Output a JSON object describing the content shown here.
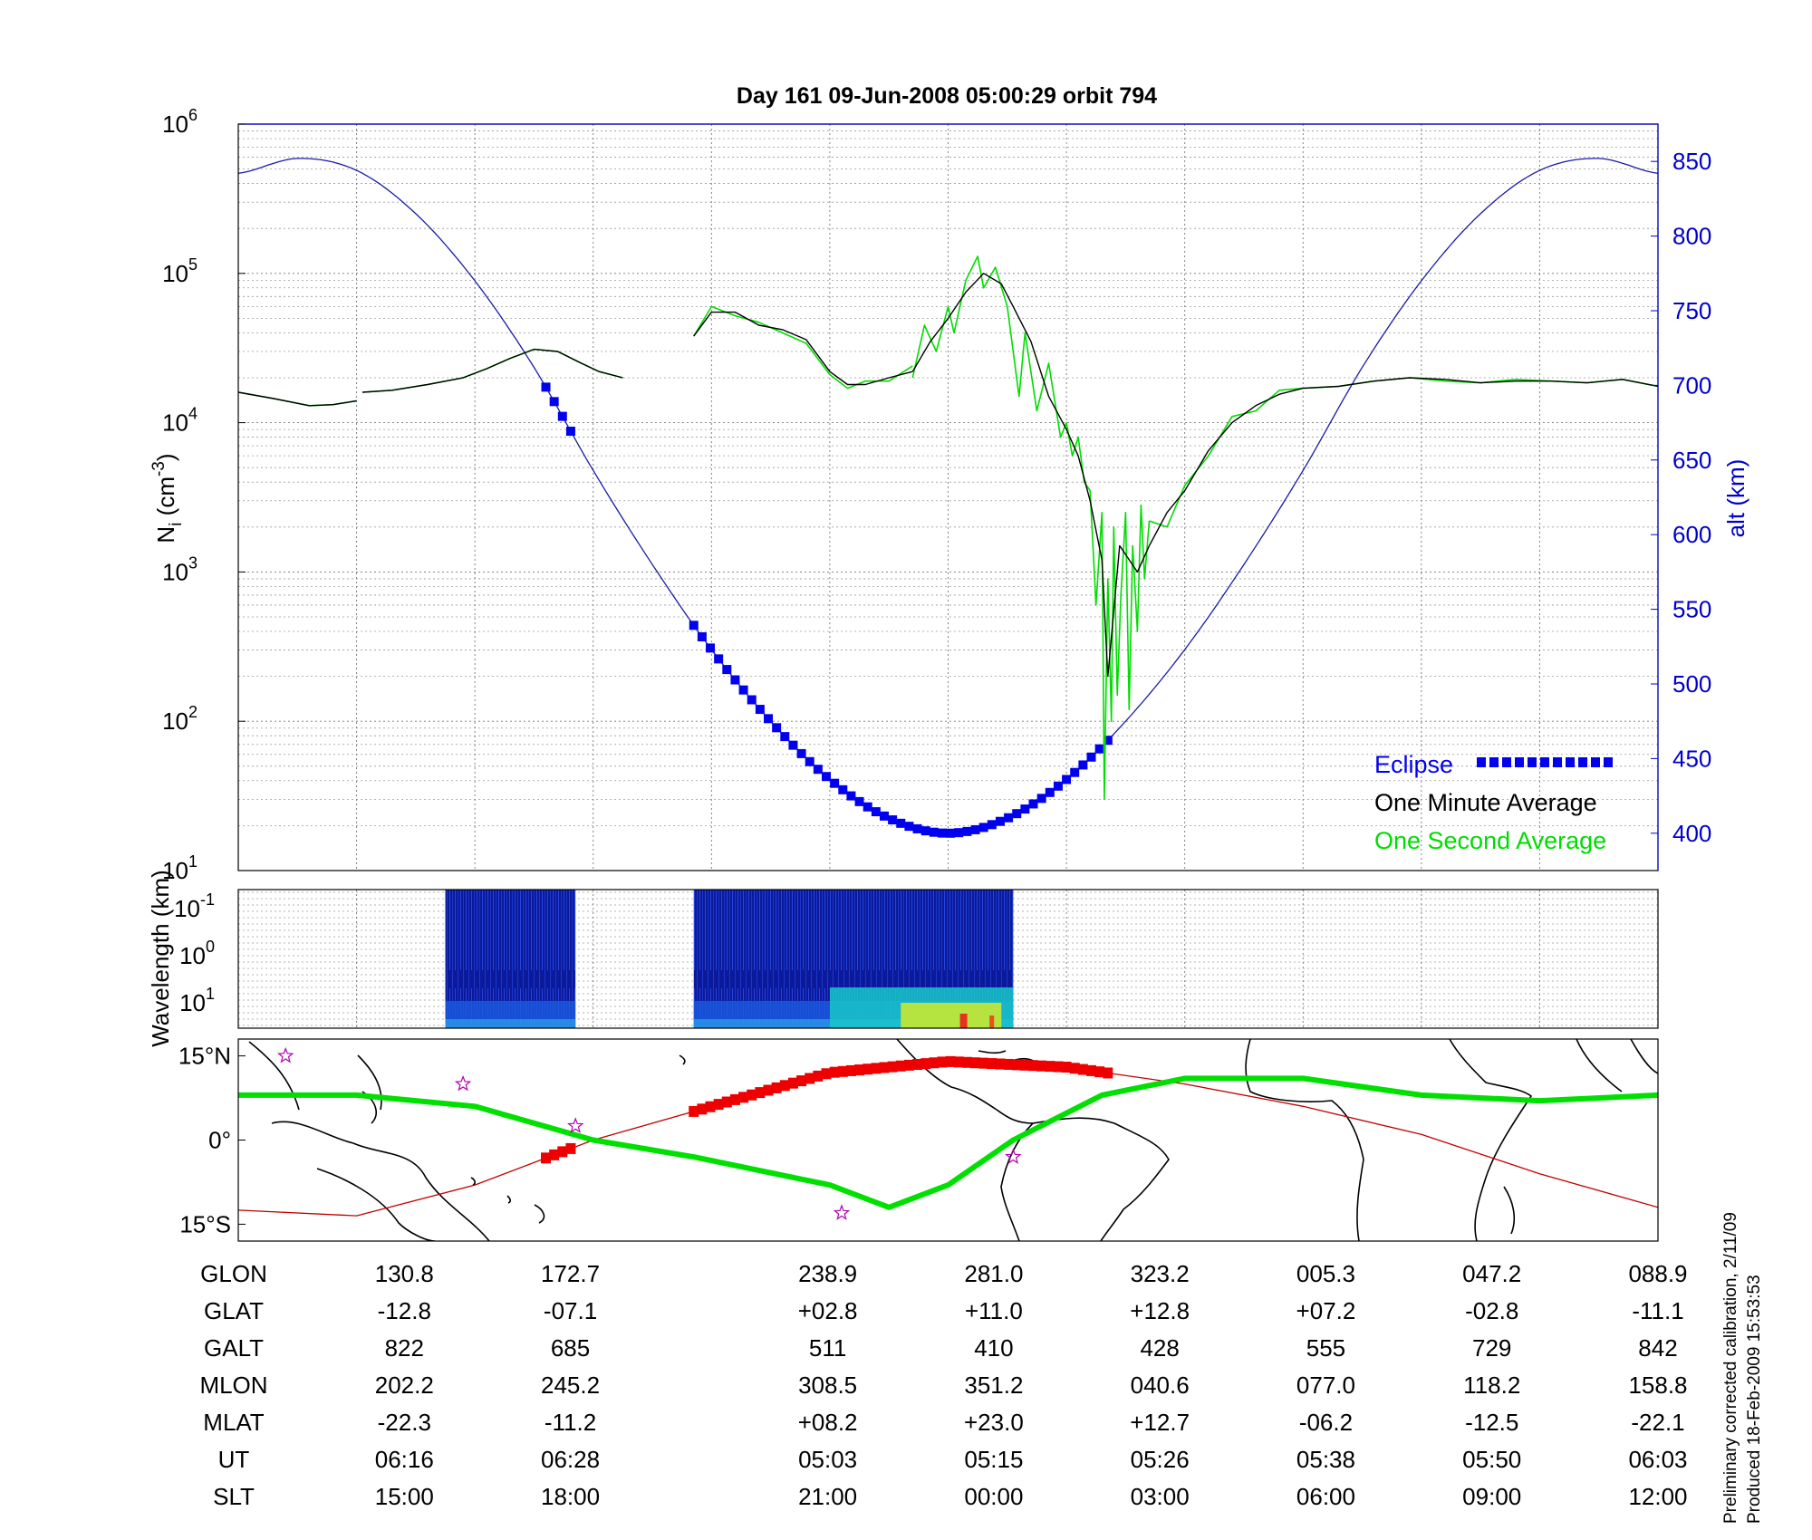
{
  "title": "Day 161  09-Jun-2008 05:00:29   orbit 794",
  "colors": {
    "eclipse": "#0000ee",
    "altitude": "#1a1aa8",
    "one_minute": "#000000",
    "one_second": "#00dd00",
    "track_eclipse": "#ee0000",
    "ground_track": "#00e000",
    "magnetic_equator": "#c00000",
    "star": "#b000b0",
    "right_axis": "#0000cc"
  },
  "chart_data": [
    {
      "type": "line",
      "panel": "ion-density",
      "ylabel": "N_i (cm^-3)",
      "ylabel_main": "N",
      "ylabel_sub": "i",
      "ylabel_unit": " (cm",
      "ylabel_unit_sup": "-3",
      "ylabel_close": ")",
      "yscale": "log",
      "ylim": [
        10,
        1000000
      ],
      "yticks": [
        {
          "base": "10",
          "exp": "1",
          "value": 10
        },
        {
          "base": "10",
          "exp": "2",
          "value": 100
        },
        {
          "base": "10",
          "exp": "3",
          "value": 1000
        },
        {
          "base": "10",
          "exp": "4",
          "value": 10000
        },
        {
          "base": "10",
          "exp": "5",
          "value": 100000
        },
        {
          "base": "10",
          "exp": "6",
          "value": 1000000
        }
      ],
      "y2label": "alt (km)",
      "y2lim": [
        375,
        875
      ],
      "y2ticks": [
        "400",
        "450",
        "500",
        "550",
        "600",
        "650",
        "700",
        "750",
        "800",
        "850"
      ],
      "grid": true,
      "legend_position": "bottom-right",
      "legend": [
        {
          "label": "Eclipse",
          "key": "eclipse"
        },
        {
          "label": "One Minute Average",
          "key": "one_minute"
        },
        {
          "label": "One Second Average",
          "key": "one_second"
        }
      ],
      "series": [
        {
          "name": "One Minute Average",
          "key": "one_minute",
          "segments": [
            {
              "x": [
                0,
                0.3,
                0.6,
                0.8,
                1.0
              ],
              "y": [
                16000,
                14500,
                13000,
                13200,
                14000
              ]
            },
            {
              "x": [
                1.05,
                1.3,
                1.6,
                1.9,
                2.1,
                2.3,
                2.5,
                2.7
              ],
              "y": [
                16000,
                16500,
                18000,
                20000,
                23000,
                27000,
                31000,
                30000
              ]
            },
            {
              "x": [
                2.7,
                2.9,
                3.05,
                3.25
              ],
              "y": [
                30000,
                25000,
                22000,
                20000
              ]
            },
            {
              "x": [
                3.85,
                4.0,
                4.2,
                4.4,
                4.6,
                4.8,
                5.0,
                5.15,
                5.3,
                5.5,
                5.7
              ],
              "y": [
                38000,
                55000,
                55000,
                45000,
                42000,
                36000,
                22000,
                18000,
                18000,
                20000,
                22000
              ]
            },
            {
              "x": [
                5.7,
                5.85,
                6.0,
                6.15,
                6.3,
                6.45,
                6.55,
                6.7,
                6.85,
                7.0,
                7.1,
                7.2,
                7.3,
                7.35,
                7.45,
                7.6,
                7.7
              ],
              "y": [
                22000,
                35000,
                50000,
                75000,
                100000,
                85000,
                60000,
                35000,
                15000,
                9000,
                6000,
                3000,
                1200,
                200,
                1500,
                1000,
                1500
              ]
            },
            {
              "x": [
                7.7,
                7.85,
                8.0,
                8.2,
                8.4,
                8.6,
                8.8,
                9.0
              ],
              "y": [
                1500,
                2500,
                3500,
                6500,
                10000,
                13000,
                15500,
                17000
              ]
            },
            {
              "x": [
                9.0,
                9.3,
                9.6,
                9.9,
                10.2,
                10.5,
                10.8,
                11.1,
                11.4,
                11.7,
                12.0
              ],
              "y": [
                17000,
                17500,
                19000,
                20000,
                19500,
                18500,
                19000,
                19000,
                18500,
                19500,
                17500
              ]
            }
          ]
        },
        {
          "name": "One Second Average",
          "key": "one_second",
          "segments": [
            {
              "x": [
                0,
                0.3,
                0.6,
                0.8,
                1.0
              ],
              "y": [
                16000,
                14500,
                13000,
                13200,
                14000
              ]
            },
            {
              "x": [
                1.05,
                1.3,
                1.6,
                1.9,
                2.1,
                2.3,
                2.5,
                2.7
              ],
              "y": [
                16000,
                16500,
                18000,
                20000,
                23000,
                27000,
                31000,
                30000
              ]
            },
            {
              "x": [
                2.7,
                2.9,
                3.05,
                3.25
              ],
              "y": [
                30000,
                25000,
                22000,
                20000
              ]
            },
            {
              "x": [
                3.85,
                4.0,
                4.2,
                4.4,
                4.6,
                4.8,
                5.0,
                5.15,
                5.3,
                5.5,
                5.7
              ],
              "y": [
                38000,
                60000,
                52000,
                47000,
                40000,
                34000,
                21000,
                17000,
                19000,
                19000,
                24000
              ]
            },
            {
              "x": [
                5.7,
                5.8,
                5.9,
                6.0,
                6.05,
                6.15,
                6.25,
                6.3,
                6.4,
                6.5,
                6.6,
                6.65,
                6.75,
                6.85,
                6.95,
                7.0,
                7.05,
                7.1,
                7.15,
                7.2,
                7.25,
                7.3,
                7.32,
                7.35,
                7.38,
                7.4,
                7.43,
                7.46,
                7.5,
                7.53,
                7.56,
                7.6,
                7.63,
                7.66,
                7.7
              ],
              "y": [
                20000,
                45000,
                30000,
                60000,
                40000,
                90000,
                130000,
                80000,
                110000,
                60000,
                15000,
                40000,
                12000,
                25000,
                8000,
                10000,
                6000,
                8000,
                4000,
                3500,
                600,
                2500,
                30,
                900,
                100,
                2000,
                150,
                700,
                2500,
                120,
                1500,
                400,
                2800,
                900,
                2200
              ]
            },
            {
              "x": [
                7.7,
                7.85,
                8.0,
                8.2,
                8.4,
                8.6,
                8.8,
                9.0
              ],
              "y": [
                2200,
                2000,
                3800,
                6000,
                11000,
                12000,
                16500,
                17000
              ]
            },
            {
              "x": [
                9.0,
                9.3,
                9.6,
                9.9,
                10.2,
                10.5,
                10.8,
                11.1,
                11.4,
                11.7,
                12.0
              ],
              "y": [
                17000,
                17500,
                19000,
                20000,
                19000,
                18500,
                19500,
                19000,
                18500,
                19500,
                17500
              ]
            }
          ]
        },
        {
          "name": "altitude",
          "key": "altitude",
          "axis": "right",
          "x": [
            0,
            0.5,
            1.0,
            1.5,
            2.0,
            2.5,
            3.0,
            3.5,
            4.0,
            4.5,
            5.0,
            5.5,
            6.0,
            6.5,
            7.0,
            7.5,
            8.0,
            8.5,
            9.0,
            9.5,
            10.0,
            10.5,
            11.0,
            11.5,
            12.0
          ],
          "y": [
            842,
            852,
            844,
            815,
            770,
            712,
            643,
            580,
            523,
            475,
            436,
            410,
            400,
            410,
            436,
            475,
            523,
            580,
            643,
            712,
            770,
            815,
            844,
            852,
            842
          ]
        },
        {
          "name": "Eclipse",
          "key": "eclipse",
          "axis": "right",
          "segments": [
            {
              "x_start": 2.6,
              "x_end": 2.85
            },
            {
              "x_start": 3.85,
              "x_end": 7.35
            }
          ]
        }
      ]
    },
    {
      "type": "heatmap",
      "panel": "wavelength-spectrogram",
      "ylabel": "Wavelength (km)",
      "yticks": [
        {
          "base": "10",
          "exp": "-1"
        },
        {
          "base": "10",
          "exp": "0"
        },
        {
          "base": "10",
          "exp": "1"
        }
      ],
      "coverage": [
        {
          "x_start": 1.75,
          "x_end": 2.85
        },
        {
          "x_start": 3.85,
          "x_end": 6.55
        }
      ]
    },
    {
      "type": "map",
      "panel": "ground-track",
      "yticks": [
        "15°N",
        "0°",
        "15°S"
      ],
      "ground_track": {
        "x": [
          0,
          1.0,
          2.0,
          3.0,
          3.85,
          5.0,
          5.5,
          6.0,
          6.55,
          7.3,
          8.0,
          9.0,
          10.0,
          11.0,
          12.0
        ],
        "lat": [
          8,
          8,
          6,
          0,
          -3,
          -8,
          -12,
          -8,
          0,
          8,
          11,
          11,
          8,
          7,
          8
        ]
      },
      "magnetic_equator": {
        "x": [
          0,
          1.0,
          2.0,
          3.0,
          4.0,
          5.0,
          6.0,
          7.0,
          8.0,
          9.0,
          10.0,
          11.0,
          12.0
        ],
        "lat": [
          -12.5,
          -13.5,
          -8,
          0,
          6,
          12,
          14,
          13,
          10,
          6,
          1,
          -6,
          -12
        ]
      },
      "eclipse_track_segments": [
        {
          "x_start": 2.6,
          "x_end": 2.85
        },
        {
          "x_start": 3.85,
          "x_end": 7.35
        }
      ],
      "stars": [
        {
          "x": 0.4,
          "lat": 15
        },
        {
          "x": 1.9,
          "lat": 10
        },
        {
          "x": 2.85,
          "lat": 2.5
        },
        {
          "x": 5.1,
          "lat": -13
        },
        {
          "x": 6.55,
          "lat": -3
        }
      ]
    }
  ],
  "table": {
    "rows": [
      {
        "label": "GLON",
        "values": [
          "130.8",
          "172.7",
          "238.9",
          "281.0",
          "323.2",
          "005.3",
          "047.2",
          "088.9"
        ]
      },
      {
        "label": "GLAT",
        "values": [
          "-12.8",
          "-07.1",
          "+02.8",
          "+11.0",
          "+12.8",
          "+07.2",
          "-02.8",
          "-11.1"
        ]
      },
      {
        "label": "GALT",
        "values": [
          "822",
          "685",
          "511",
          "410",
          "428",
          "555",
          "729",
          "842"
        ]
      },
      {
        "label": "MLON",
        "values": [
          "202.2",
          "245.2",
          "308.5",
          "351.2",
          "040.6",
          "077.0",
          "118.2",
          "158.8"
        ]
      },
      {
        "label": "MLAT",
        "values": [
          "-22.3",
          "-11.2",
          "+08.2",
          "+23.0",
          "+12.7",
          "-06.2",
          "-12.5",
          "-22.1"
        ]
      },
      {
        "label": "UT",
        "values": [
          "06:16",
          "06:28",
          "05:03",
          "05:15",
          "05:26",
          "05:38",
          "05:50",
          "06:03"
        ]
      },
      {
        "label": "SLT",
        "values": [
          "15:00",
          "18:00",
          "21:00",
          "00:00",
          "03:00",
          "06:00",
          "09:00",
          "12:00"
        ]
      }
    ],
    "column_x": [
      1,
      2,
      3.55,
      4.55,
      5.55,
      6.55,
      7.55,
      8.55
    ]
  },
  "footnote": {
    "line1": "Preliminary corrected calibration, 2/11/09",
    "line2": "Produced 18-Feb-2009 15:53:53"
  }
}
